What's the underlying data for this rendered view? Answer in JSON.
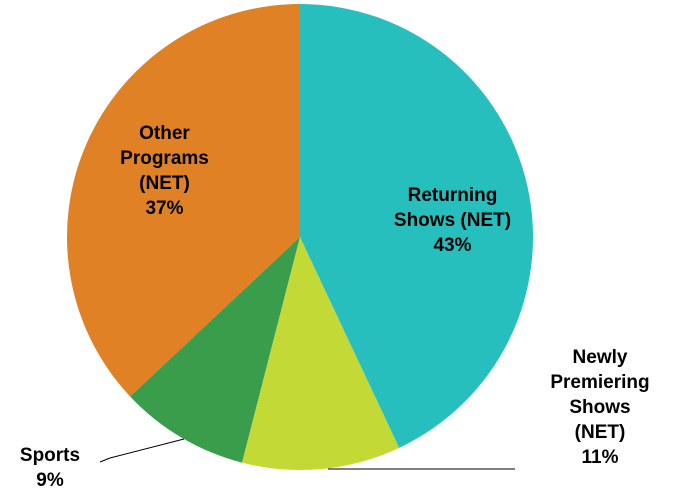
{
  "chart_data": {
    "type": "pie",
    "categories": [
      "Returning Shows (NET)",
      "Newly Premiering Shows (NET)",
      "Sports",
      "Other Programs (NET)"
    ],
    "values": [
      43,
      11,
      9,
      37
    ],
    "value_labels": [
      "43%",
      "11%",
      "9%",
      "37%"
    ],
    "colors": [
      "#26bfbd",
      "#c3d935",
      "#3a9d4b",
      "#df8124"
    ]
  }
}
